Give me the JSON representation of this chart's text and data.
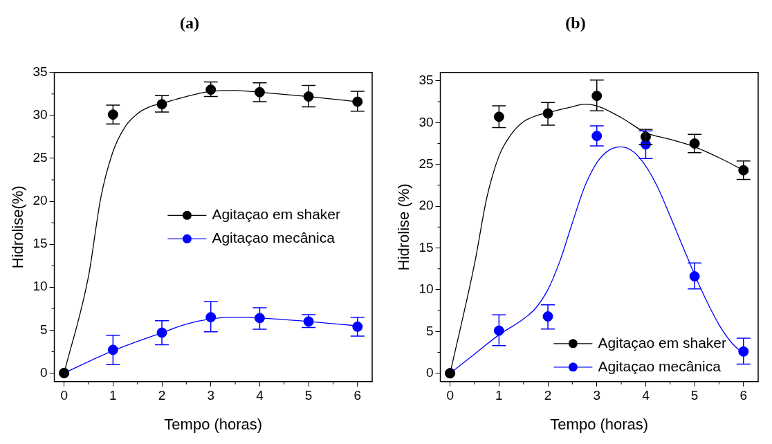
{
  "chart_data": [
    {
      "type": "scatter",
      "title": "(a)",
      "xlabel": "Tempo (horas)",
      "ylabel": "Hidrolise(%)",
      "xlim": [
        -0.2,
        6.3
      ],
      "xticks": [
        0,
        1,
        2,
        3,
        4,
        5,
        6
      ],
      "ylim": [
        -1,
        35
      ],
      "yticks": [
        0,
        5,
        10,
        15,
        20,
        25,
        30,
        35
      ],
      "grid": false,
      "legend": "right",
      "marker": "circle",
      "series": [
        {
          "name": "Agitaçao em shaker",
          "type": "scatter",
          "color": "#000000",
          "x": [
            0,
            1,
            2,
            3,
            4,
            5,
            6
          ],
          "values": [
            0,
            30.1,
            31.3,
            33.0,
            32.7,
            32.2,
            31.6
          ],
          "errors": [
            null,
            [
              29.0,
              31.2
            ],
            [
              30.4,
              32.3
            ],
            [
              32.2,
              33.9
            ],
            [
              31.6,
              33.8
            ],
            [
              31.0,
              33.5
            ],
            [
              30.5,
              32.8
            ]
          ]
        },
        {
          "name": "Agitaçao mecânica",
          "type": "scatter",
          "color": "#0000ff",
          "x": [
            0,
            1,
            2,
            3,
            4,
            5,
            6
          ],
          "values": [
            0,
            2.7,
            4.7,
            6.5,
            6.4,
            6.0,
            5.4
          ],
          "errors": [
            null,
            [
              1.0,
              4.4
            ],
            [
              3.3,
              6.1
            ],
            [
              4.8,
              8.3
            ],
            [
              5.1,
              7.6
            ],
            [
              5.3,
              6.8
            ],
            [
              4.3,
              6.5
            ]
          ]
        },
        {
          "type": "line",
          "color": "#000000",
          "marker": "none",
          "x": [
            0,
            0.5,
            0.75,
            1,
            1.25,
            1.5,
            1.75,
            2,
            2.5,
            3,
            3.5,
            4,
            5,
            6
          ],
          "values": [
            0,
            11.3,
            20.4,
            25.8,
            28.7,
            30.2,
            31.0,
            31.4,
            32.2,
            32.8,
            32.9,
            32.7,
            32.2,
            31.6
          ]
        },
        {
          "type": "line",
          "color": "#0000ff",
          "marker": "none",
          "x": [
            0,
            1,
            2,
            2.5,
            3,
            3.5,
            4,
            5,
            6
          ],
          "values": [
            0,
            2.6,
            4.7,
            5.7,
            6.3,
            6.5,
            6.4,
            6.0,
            5.5
          ]
        }
      ]
    },
    {
      "type": "scatter",
      "title": "(b)",
      "xlabel": "Tempo (horas)",
      "ylabel": "Hidrolise (%)",
      "xlim": [
        -0.2,
        6.3
      ],
      "xticks": [
        0,
        1,
        2,
        3,
        4,
        5,
        6
      ],
      "ylim": [
        -1,
        36
      ],
      "yticks": [
        0,
        5,
        10,
        15,
        20,
        25,
        30,
        35
      ],
      "grid": false,
      "legend": "bottom right",
      "marker": "circle",
      "series": [
        {
          "name": "Agitaçao em shaker",
          "type": "scatter",
          "color": "#000000",
          "x": [
            0,
            1,
            2,
            3,
            4,
            5,
            6
          ],
          "values": [
            0,
            30.7,
            31.1,
            33.2,
            28.3,
            27.5,
            24.3
          ],
          "errors": [
            null,
            [
              29.4,
              32.0
            ],
            [
              29.7,
              32.4
            ],
            [
              31.4,
              35.1
            ],
            [
              27.4,
              29.2
            ],
            [
              26.4,
              28.6
            ],
            [
              23.2,
              25.4
            ]
          ]
        },
        {
          "name": "Agitaçao mecânica",
          "type": "scatter",
          "color": "#0000ff",
          "x": [
            0,
            1,
            2,
            3,
            4,
            5,
            6
          ],
          "values": [
            0,
            5.1,
            6.8,
            28.4,
            27.4,
            11.6,
            2.6
          ],
          "errors": [
            null,
            [
              3.3,
              7.0
            ],
            [
              5.3,
              8.2
            ],
            [
              27.2,
              29.6
            ],
            [
              25.7,
              29.0
            ],
            [
              10.1,
              13.2
            ],
            [
              1.1,
              4.2
            ]
          ]
        },
        {
          "type": "line",
          "color": "#000000",
          "marker": "none",
          "x": [
            0,
            0.5,
            0.75,
            1,
            1.25,
            1.5,
            1.75,
            2,
            2.5,
            2.75,
            3,
            3.5,
            4,
            4.5,
            5,
            5.5,
            6
          ],
          "values": [
            0,
            13.1,
            21,
            26,
            28.6,
            30.1,
            30.8,
            31.2,
            31.9,
            32.2,
            32.0,
            30.6,
            28.8,
            28.0,
            27.1,
            25.8,
            24.3
          ]
        },
        {
          "type": "line",
          "color": "#0000ff",
          "marker": "none",
          "x": [
            0,
            0.5,
            1,
            1.5,
            1.75,
            2,
            2.25,
            2.5,
            2.75,
            3,
            3.25,
            3.5,
            3.75,
            4,
            4.25,
            4.5,
            4.75,
            5,
            5.25,
            5.5,
            5.75,
            6
          ],
          "values": [
            0,
            2.3,
            4.6,
            6.5,
            7.8,
            10.0,
            13.5,
            18,
            22.3,
            25.2,
            26.7,
            27.1,
            26.5,
            24.8,
            22.2,
            18.8,
            15.3,
            11.8,
            8.6,
            5.8,
            3.7,
            2.3
          ]
        }
      ]
    }
  ]
}
